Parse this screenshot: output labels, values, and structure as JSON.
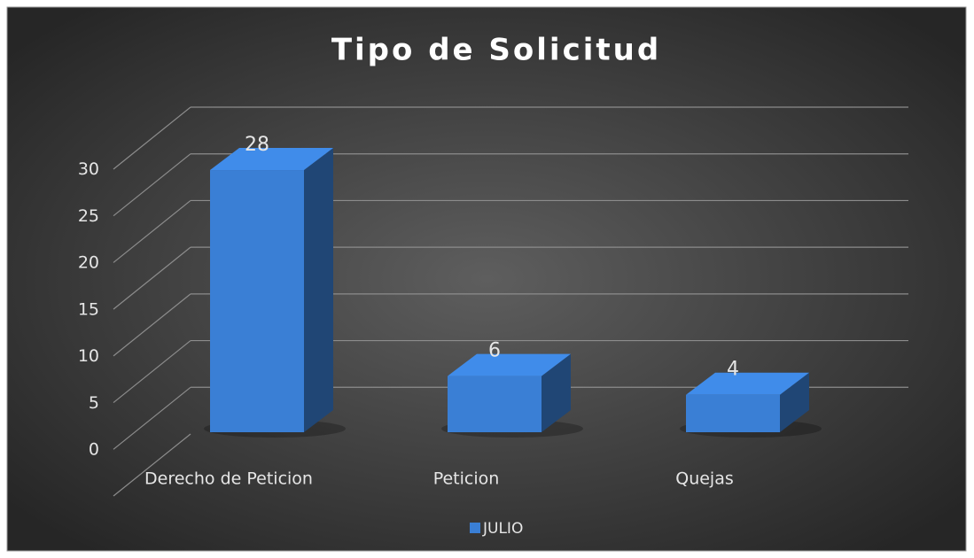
{
  "chart_data": {
    "type": "bar3d",
    "title": "Tipo de Solicitud",
    "categories": [
      "Derecho de Peticion",
      "Peticion",
      "Quejas"
    ],
    "series": [
      {
        "name": "JULIO",
        "color": "#3a7fd5",
        "values": [
          28,
          6,
          4
        ]
      }
    ],
    "ylim": [
      0,
      35
    ],
    "yticks": [
      0,
      5,
      10,
      15,
      20,
      25,
      30
    ],
    "grid": true,
    "legend": "bottom"
  }
}
